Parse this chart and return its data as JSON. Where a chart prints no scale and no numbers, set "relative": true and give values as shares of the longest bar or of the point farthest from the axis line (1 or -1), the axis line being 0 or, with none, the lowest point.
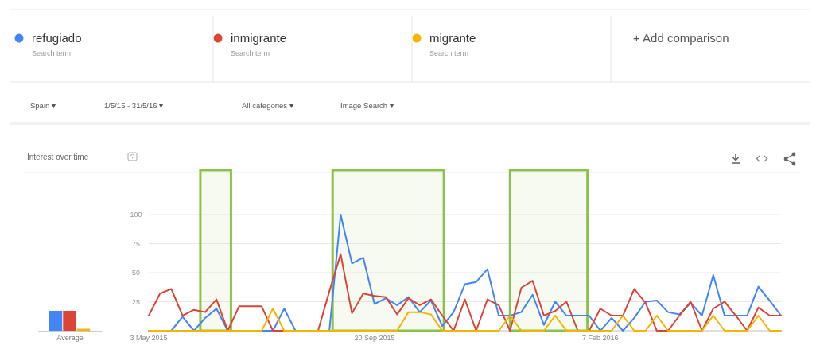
{
  "chart_data": [
    {
      "type": "bar",
      "relative": true,
      "categories": [
        "Average"
      ],
      "series": [
        {
          "color": "#4285f4",
          "values": [
            1
          ]
        },
        {
          "color": "#db4437",
          "values": [
            1
          ]
        },
        {
          "color": "#f4b400",
          "values": [
            0.1
          ]
        }
      ]
    },
    {
      "type": "line",
      "title": "Interest over time",
      "x": [
        "2015-05-03",
        "2015-05-10",
        "2015-05-17",
        "2015-05-24",
        "2015-05-31",
        "2015-06-07",
        "2015-06-14",
        "2015-06-21",
        "2015-06-28",
        "2015-07-05",
        "2015-07-12",
        "2015-07-19",
        "2015-07-26",
        "2015-08-02",
        "2015-08-09",
        "2015-08-16",
        "2015-08-23",
        "2015-08-30",
        "2015-09-06",
        "2015-09-13",
        "2015-09-20",
        "2015-09-27",
        "2015-10-04",
        "2015-10-11",
        "2015-10-18",
        "2015-10-25",
        "2015-11-01",
        "2015-11-08",
        "2015-11-15",
        "2015-11-22",
        "2015-11-29",
        "2015-12-06",
        "2015-12-13",
        "2015-12-20",
        "2015-12-27",
        "2016-01-03",
        "2016-01-10",
        "2016-01-17",
        "2016-01-24",
        "2016-01-31",
        "2016-02-07",
        "2016-02-14",
        "2016-02-21",
        "2016-02-28",
        "2016-03-06",
        "2016-03-13",
        "2016-03-20",
        "2016-03-27",
        "2016-04-03",
        "2016-04-10",
        "2016-04-17",
        "2016-04-24",
        "2016-05-01",
        "2016-05-08",
        "2016-05-15",
        "2016-05-22",
        "2016-05-29"
      ],
      "series": [
        {
          "name": "refugiado",
          "color": "#4285f4",
          "values": [
            0,
            0,
            0,
            12,
            0,
            11,
            19,
            0,
            0,
            0,
            0,
            0,
            19,
            0,
            0,
            0,
            0,
            100,
            58,
            63,
            23,
            28,
            22,
            29,
            16,
            26,
            4,
            16,
            40,
            42,
            53,
            13,
            13,
            16,
            31,
            5,
            25,
            13,
            13,
            13,
            0,
            11,
            0,
            11,
            25,
            26,
            16,
            14,
            24,
            13,
            48,
            13,
            13,
            13,
            38,
            26,
            13
          ]
        },
        {
          "name": "inmigrante",
          "color": "#db4437",
          "values": [
            13,
            32,
            36,
            13,
            18,
            16,
            27,
            0,
            21,
            21,
            21,
            0,
            0,
            0,
            0,
            0,
            34,
            66,
            15,
            32,
            30,
            29,
            14,
            28,
            22,
            27,
            13,
            0,
            27,
            0,
            27,
            22,
            0,
            37,
            43,
            13,
            17,
            25,
            0,
            0,
            19,
            13,
            13,
            36,
            24,
            0,
            0,
            13,
            25,
            0,
            19,
            25,
            13,
            0,
            20,
            13,
            13
          ]
        },
        {
          "name": "migrante",
          "color": "#f4b400",
          "values": [
            0,
            0,
            0,
            0,
            0,
            0,
            0,
            0,
            0,
            0,
            0,
            19,
            0,
            0,
            0,
            0,
            0,
            0,
            0,
            0,
            0,
            0,
            0,
            16,
            16,
            14,
            0,
            0,
            0,
            0,
            0,
            0,
            13,
            0,
            0,
            0,
            13,
            0,
            0,
            0,
            0,
            0,
            13,
            0,
            0,
            13,
            0,
            0,
            0,
            0,
            13,
            0,
            0,
            0,
            13,
            0,
            0
          ]
        }
      ],
      "xlim": [
        "2015-05-03",
        "2016-05-29"
      ],
      "xticks": [
        {
          "value": "2015-05-03",
          "label": "3 May 2015"
        },
        {
          "value": "2015-09-20",
          "label": "20 Sep 2015"
        },
        {
          "value": "2016-02-07",
          "label": "7 Feb 2016"
        }
      ],
      "ylim": [
        0,
        100
      ],
      "yticks": [
        {
          "value": 0,
          "label": null
        },
        25,
        50,
        75,
        100
      ],
      "grid": "y",
      "legend": "top",
      "bands": [
        {
          "axis": "x",
          "from": "2015-06-04",
          "to": "2015-06-23",
          "color": "#8bc34a"
        },
        {
          "axis": "x",
          "from": "2015-08-25",
          "to": "2015-11-02",
          "color": "#8bc34a"
        },
        {
          "axis": "x",
          "from": "2015-12-13",
          "to": "2016-01-30",
          "color": "#8bc34a"
        }
      ],
      "annotations": [
        "Search term",
        "Search term",
        "Search term",
        "+  Add comparison",
        "Spain ▾",
        "1/5/15 - 31/5/16 ▾",
        "All categories ▾",
        "Image Search ▾"
      ]
    }
  ]
}
